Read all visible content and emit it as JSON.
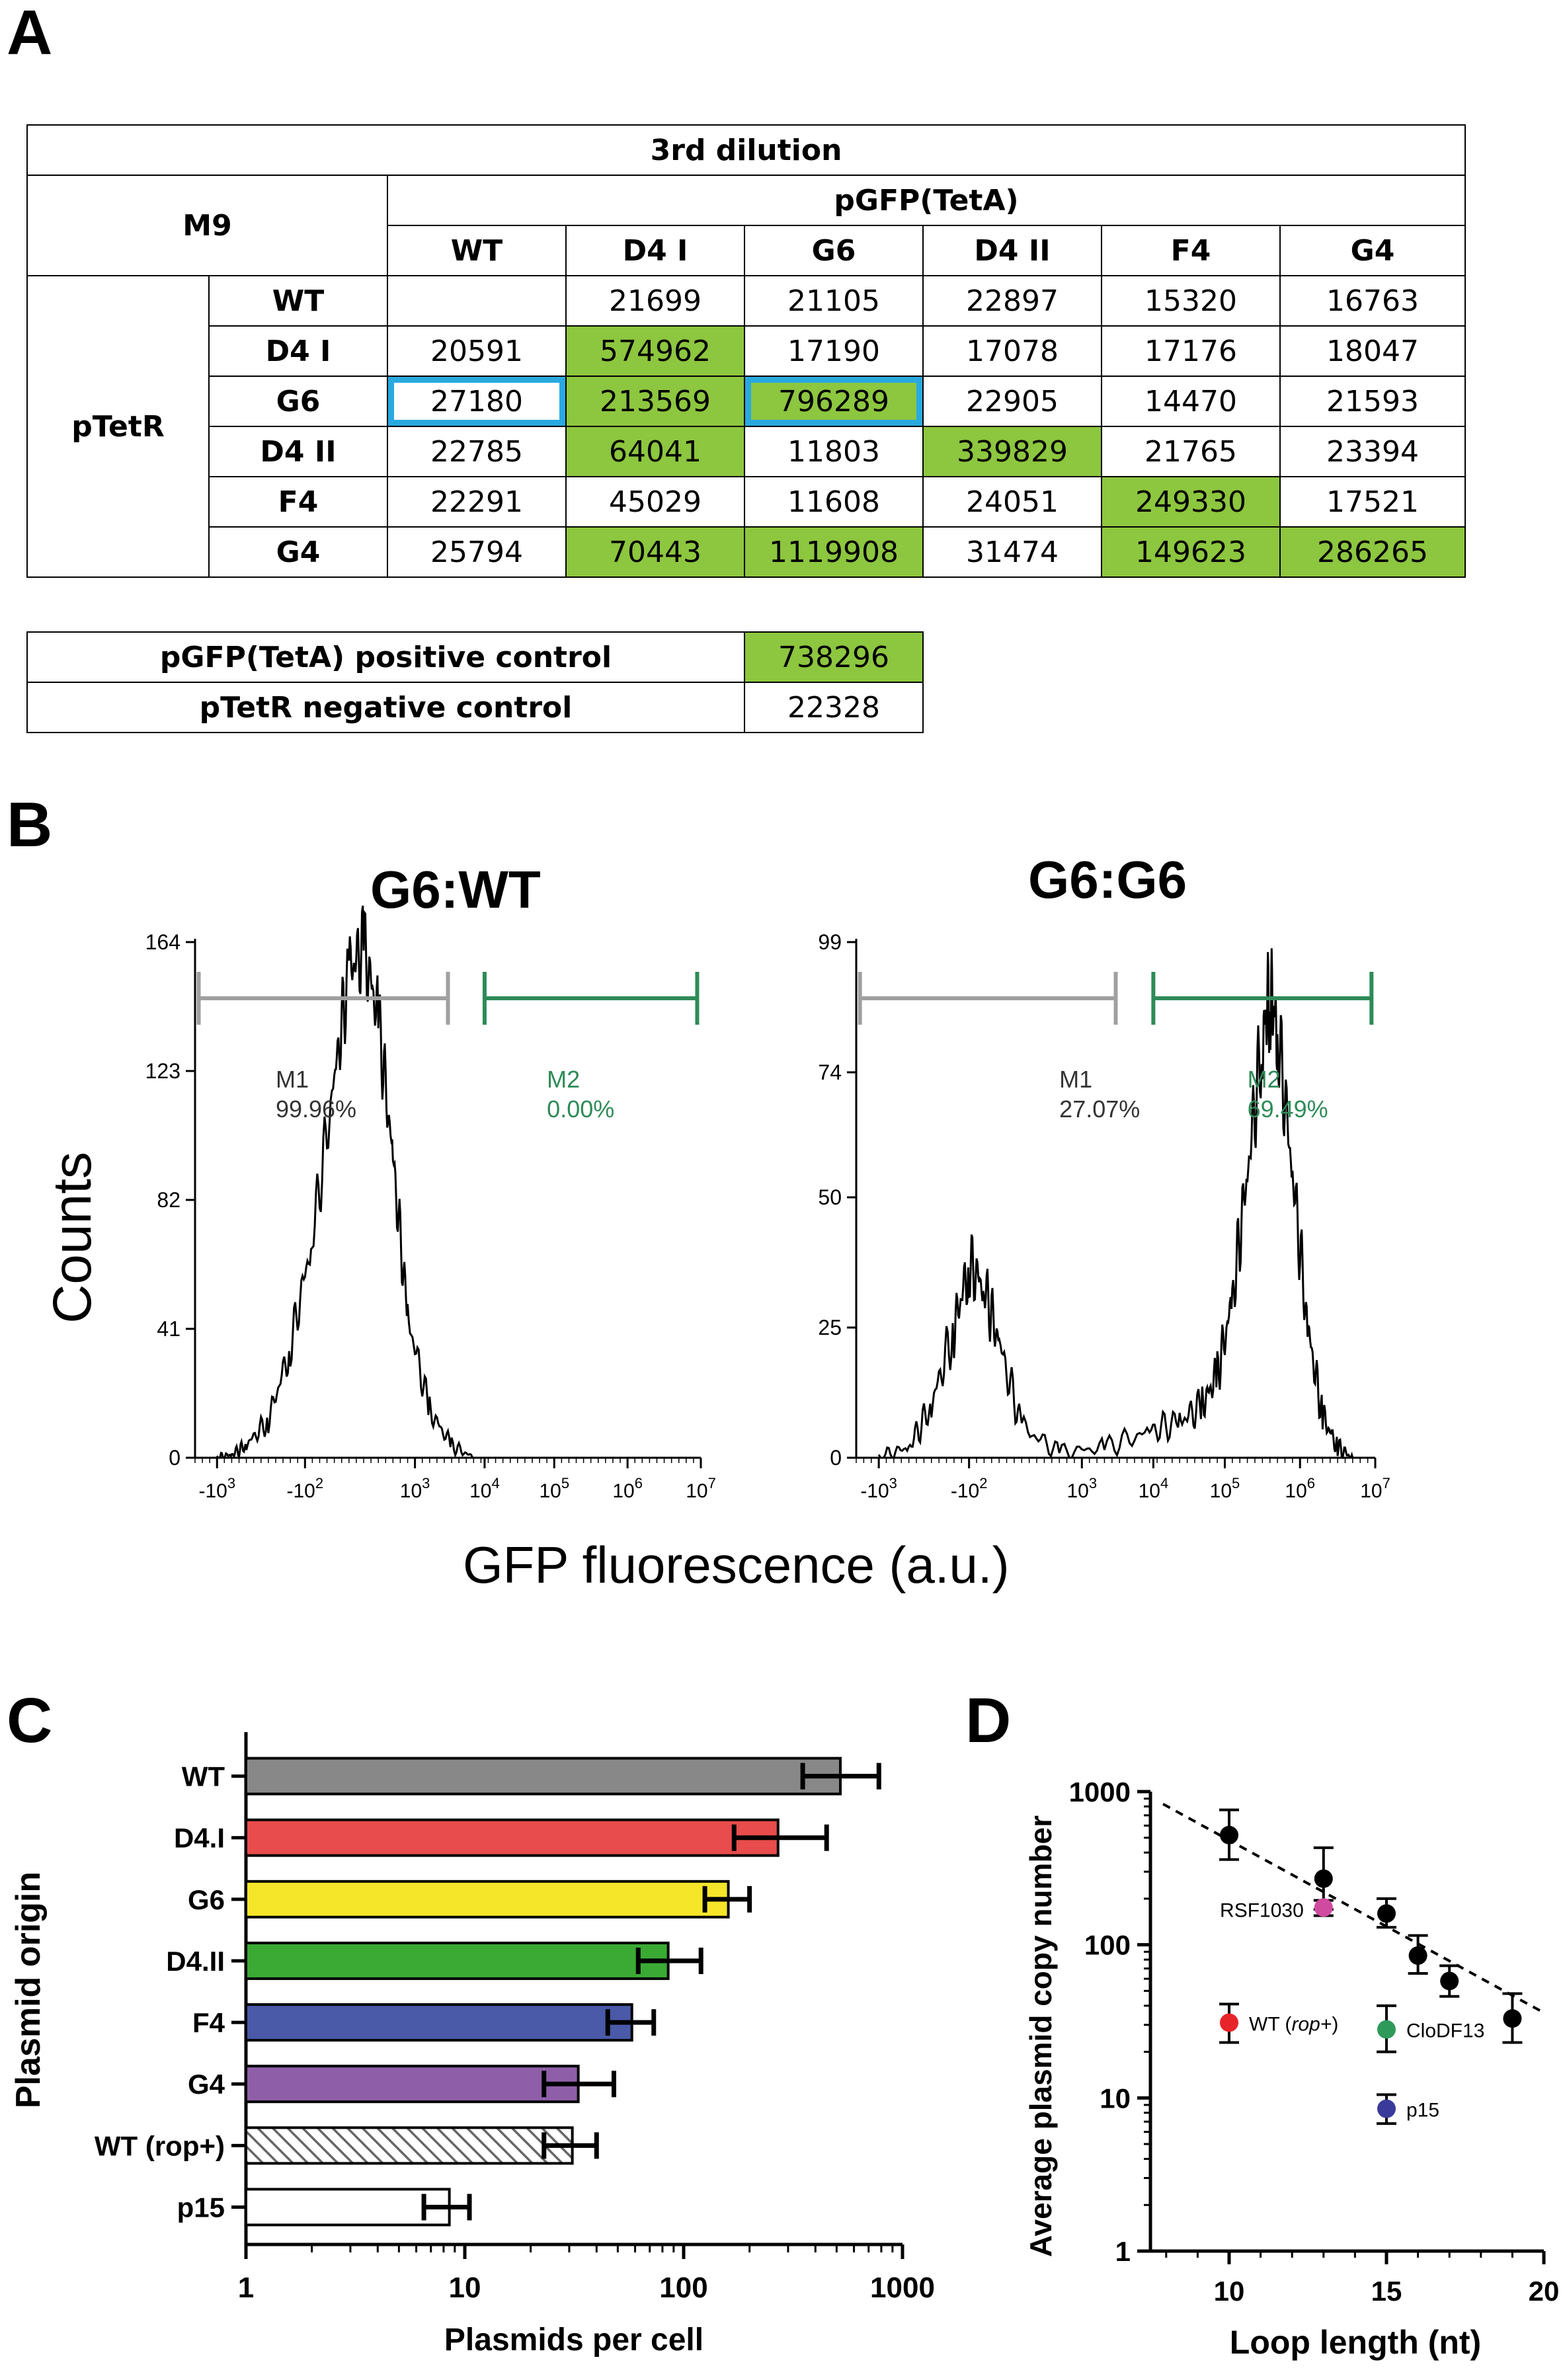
{
  "panels": {
    "A": "A",
    "B": "B",
    "C": "C",
    "D": "D"
  },
  "colors": {
    "green_cell": "#8dc63f",
    "highlight_box": "#29a9e0",
    "gate_m1": "#a0a0a0",
    "gate_m2": "#2e8b57"
  },
  "table_a": {
    "dilution_header": "3rd dilution",
    "medium": "M9",
    "col_group": "pGFP(TetA)",
    "row_group": "pTetR",
    "columns": [
      "WT",
      "D4 I",
      "G6",
      "D4 II",
      "F4",
      "G4"
    ],
    "rows": [
      {
        "label": "WT",
        "values": [
          "",
          "21699",
          "21105",
          "22897",
          "15320",
          "16763"
        ],
        "green": [
          false,
          false,
          false,
          false,
          false,
          false
        ],
        "box": [
          false,
          false,
          false,
          false,
          false,
          false
        ]
      },
      {
        "label": "D4 I",
        "values": [
          "20591",
          "574962",
          "17190",
          "17078",
          "17176",
          "18047"
        ],
        "green": [
          false,
          true,
          false,
          false,
          false,
          false
        ],
        "box": [
          false,
          false,
          false,
          false,
          false,
          false
        ]
      },
      {
        "label": "G6",
        "values": [
          "27180",
          "213569",
          "796289",
          "22905",
          "14470",
          "21593"
        ],
        "green": [
          false,
          true,
          true,
          false,
          false,
          false
        ],
        "box": [
          true,
          false,
          true,
          false,
          false,
          false
        ]
      },
      {
        "label": "D4 II",
        "values": [
          "22785",
          "64041",
          "11803",
          "339829",
          "21765",
          "23394"
        ],
        "green": [
          false,
          true,
          false,
          true,
          false,
          false
        ],
        "box": [
          false,
          false,
          false,
          false,
          false,
          false
        ]
      },
      {
        "label": "F4",
        "values": [
          "22291",
          "45029",
          "11608",
          "24051",
          "249330",
          "17521"
        ],
        "green": [
          false,
          false,
          false,
          false,
          true,
          false
        ],
        "box": [
          false,
          false,
          false,
          false,
          false,
          false
        ]
      },
      {
        "label": "G4",
        "values": [
          "25794",
          "70443",
          "1119908",
          "31474",
          "149623",
          "286265"
        ],
        "green": [
          false,
          true,
          true,
          false,
          true,
          true
        ],
        "box": [
          false,
          false,
          false,
          false,
          false,
          false
        ]
      }
    ],
    "controls": [
      {
        "label": "pGFP(TetA) positive control",
        "value": "738296",
        "green": true
      },
      {
        "label": "pTetR negative control",
        "value": "22328",
        "green": false
      }
    ]
  },
  "panel_b": {
    "y_label": "Counts",
    "x_label": "GFP fluorescence (a.u.)"
  },
  "chart_data": [
    {
      "type": "line",
      "title": "G6:WT",
      "ylim": [
        0,
        164
      ],
      "yticks": [
        "0",
        "41",
        "82",
        "123",
        "164"
      ],
      "xticks": [
        "-10^3",
        "-10^2",
        "10^3",
        "10^4",
        "10^5",
        "10^6",
        "10^7"
      ],
      "series": [
        {
          "x": [
            -2.2,
            -2,
            -1.8,
            -1.5,
            -1.2,
            -0.9,
            -0.6,
            -0.4,
            -0.2,
            0,
            0.2,
            0.4,
            0.7,
            1.0,
            1.3
          ],
          "values": [
            0,
            1,
            4,
            12,
            35,
            70,
            120,
            155,
            162,
            140,
            95,
            45,
            15,
            4,
            0
          ]
        }
      ],
      "gates": [
        {
          "label": "M1",
          "percent": "99.96%",
          "color": "gray"
        },
        {
          "label": "M2",
          "percent": "0.00%",
          "color": "green"
        }
      ]
    },
    {
      "type": "line",
      "title": "G6:G6",
      "ylim": [
        0,
        99
      ],
      "yticks": [
        "0",
        "25",
        "50",
        "74",
        "99"
      ],
      "xticks": [
        "-10^3",
        "-10^2",
        "10^3",
        "10^4",
        "10^5",
        "10^6",
        "10^7"
      ],
      "series": [
        {
          "x": [
            -2.2,
            -1.8,
            -1.5,
            -1.2,
            -1.0,
            -0.8,
            -0.6,
            -0.3,
            0.2,
            0.8,
            1.4,
            1.8,
            2.1,
            2.3,
            2.5,
            2.7,
            2.9,
            3.0,
            3.1,
            3.3,
            3.5,
            3.7,
            3.9,
            4.1
          ],
          "values": [
            0,
            2,
            10,
            25,
            37,
            33,
            22,
            6,
            1,
            2,
            5,
            7,
            10,
            16,
            30,
            55,
            80,
            90,
            82,
            55,
            25,
            8,
            2,
            0
          ]
        }
      ],
      "gates": [
        {
          "label": "M1",
          "percent": "27.07%",
          "color": "gray"
        },
        {
          "label": "M2",
          "percent": "69.49%",
          "color": "green"
        }
      ]
    },
    {
      "type": "bar",
      "xlabel": "Plasmids per cell",
      "ylabel": "Plasmid origin",
      "xscale": "log",
      "xlim": [
        1,
        1000
      ],
      "xticks": [
        "1",
        "10",
        "100",
        "1000"
      ],
      "categories": [
        "WT",
        "D4.I",
        "G6",
        "D4.II",
        "F4",
        "G4",
        "WT (rop+)",
        "p15"
      ],
      "values": [
        520,
        270,
        160,
        85,
        58,
        33,
        31,
        8.5
      ],
      "errors_high": [
        780,
        450,
        200,
        120,
        73,
        48,
        40,
        10.5
      ],
      "errors_low": [
        350,
        170,
        125,
        62,
        45,
        23,
        23,
        6.5
      ],
      "colors": [
        "#888888",
        "#e84c4c",
        "#f5e62a",
        "#3aaa35",
        "#4a5aa8",
        "#8e5fa8",
        "hatched",
        "#ffffff"
      ]
    },
    {
      "type": "scatter",
      "xlabel": "Loop length (nt)",
      "ylabel": "Average plasmid copy number",
      "yscale": "log",
      "xlim": [
        7.5,
        20
      ],
      "ylim": [
        1,
        1000
      ],
      "xticks": [
        "10",
        "15",
        "20"
      ],
      "yticks": [
        "1",
        "10",
        "100",
        "1000"
      ],
      "trend_points": [
        {
          "x": 10,
          "y": 520,
          "lo": 360,
          "hi": 760
        },
        {
          "x": 13,
          "y": 270,
          "lo": 170,
          "hi": 430
        },
        {
          "x": 15,
          "y": 160,
          "lo": 130,
          "hi": 200
        },
        {
          "x": 16,
          "y": 85,
          "lo": 65,
          "hi": 115
        },
        {
          "x": 17,
          "y": 58,
          "lo": 46,
          "hi": 73
        },
        {
          "x": 19,
          "y": 33,
          "lo": 23,
          "hi": 48
        }
      ],
      "colored_points": [
        {
          "label": "RSF1030",
          "x": 13,
          "y": 175,
          "lo": 155,
          "hi": 195,
          "color": "#d04aa0"
        },
        {
          "label": "WT (rop+)",
          "x": 10,
          "y": 31,
          "lo": 23,
          "hi": 41,
          "color": "#e8242b"
        },
        {
          "label": "CloDF13",
          "x": 15,
          "y": 28,
          "lo": 20,
          "hi": 40,
          "color": "#2e9a5a"
        },
        {
          "label": "p15",
          "x": 15,
          "y": 8.5,
          "lo": 6.8,
          "hi": 10.5,
          "color": "#3a3a9a"
        }
      ]
    }
  ]
}
